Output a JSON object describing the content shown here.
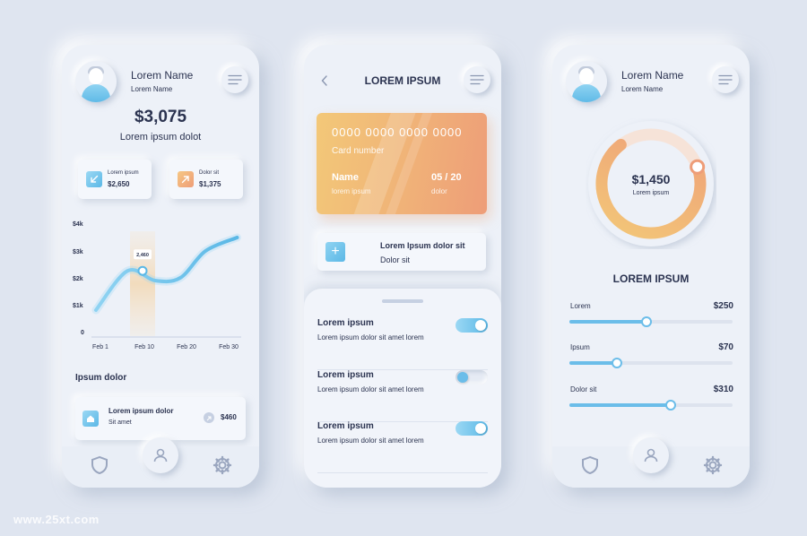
{
  "colors": {
    "background": "#dfe5f0",
    "phone_surface": "#edf1f8",
    "text_primary": "#2b3350",
    "accent_blue": "#6bbde9",
    "accent_orange": "#f0a57a",
    "accent_yellow": "#f3c878"
  },
  "screen1": {
    "user": {
      "name": "Lorem Name",
      "subtitle": "Lorem Name",
      "avatar_icon": "user-avatar-icon",
      "menu_icon": "menu-icon"
    },
    "balance": "$3,075",
    "balance_label": "Lorem ipsum dolot",
    "stats": [
      {
        "label": "Lorem ipsum",
        "value": "$2,650",
        "icon": "arrow-down-left-icon",
        "color": "#6bbde9"
      },
      {
        "label": "Dolor sit",
        "value": "$1,375",
        "icon": "arrow-up-right-icon",
        "color": "#f0a57a"
      }
    ],
    "section_title": "Ipsum dolor",
    "transaction": {
      "title": "Lorem ipsum dolor",
      "subtitle": "Sit amet",
      "amount": "$460",
      "icon": "home-icon",
      "badge_icon": "arrow-badge-icon"
    },
    "nav": {
      "left_icon": "shield-icon",
      "center_icon": "user-icon",
      "right_icon": "gear-icon"
    }
  },
  "chart_data": {
    "type": "line",
    "title": "",
    "x": [
      "Feb 1",
      "Feb 10",
      "Feb 20",
      "Feb 30"
    ],
    "y_ticks": [
      "$4k",
      "$3k",
      "$2k",
      "$1k",
      "0"
    ],
    "ylim": [
      0,
      4000
    ],
    "series": [
      {
        "points": [
          {
            "x": 0,
            "y": 1000
          },
          {
            "x": 0.75,
            "y": 2460
          },
          {
            "x": 1.4,
            "y": 2100
          },
          {
            "x": 2.0,
            "y": 2200
          },
          {
            "x": 2.6,
            "y": 3200
          },
          {
            "x": 3.35,
            "y": 3700
          }
        ]
      }
    ],
    "highlight": {
      "x": 1,
      "label": "2,460",
      "value": 2460
    },
    "grid": false
  },
  "screen2": {
    "title": "LOREM IPSUM",
    "back_icon": "chevron-left-icon",
    "menu_icon": "menu-icon",
    "card": {
      "number": "0000 0000 0000 0000",
      "number_label": "Card number",
      "name": "Name",
      "name_label": "lorem ipsum",
      "expiry": "05 / 20",
      "expiry_label": "dolor"
    },
    "add_card": {
      "title": "Lorem Ipsum dolor sit",
      "subtitle": "Dolor sit",
      "icon": "plus-icon"
    },
    "settings": [
      {
        "title": "Lorem ipsum",
        "desc": "Lorem ipsum dolor sit amet lorem",
        "enabled": true
      },
      {
        "title": "Lorem ipsum",
        "desc": "Lorem ipsum dolor sit amet lorem",
        "enabled": false
      },
      {
        "title": "Lorem ipsum",
        "desc": "Lorem ipsum dolor sit amet lorem",
        "enabled": true
      }
    ]
  },
  "screen3": {
    "user": {
      "name": "Lorem Name",
      "subtitle": "Lorem Name",
      "avatar_icon": "user-avatar-icon",
      "menu_icon": "menu-icon"
    },
    "donut": {
      "amount": "$1,450",
      "label": "Lorem ipsum",
      "fraction": 0.7
    },
    "title": "LOREM IPSUM",
    "sliders": [
      {
        "label": "Lorem",
        "value": "$250",
        "fraction": 0.47
      },
      {
        "label": "Ipsum",
        "value": "$70",
        "fraction": 0.29
      },
      {
        "label": "Dolor sit",
        "value": "$310",
        "fraction": 0.62
      }
    ],
    "nav": {
      "left_icon": "shield-icon",
      "center_icon": "user-icon",
      "right_icon": "gear-icon"
    }
  },
  "watermark": "www.25xt.com"
}
